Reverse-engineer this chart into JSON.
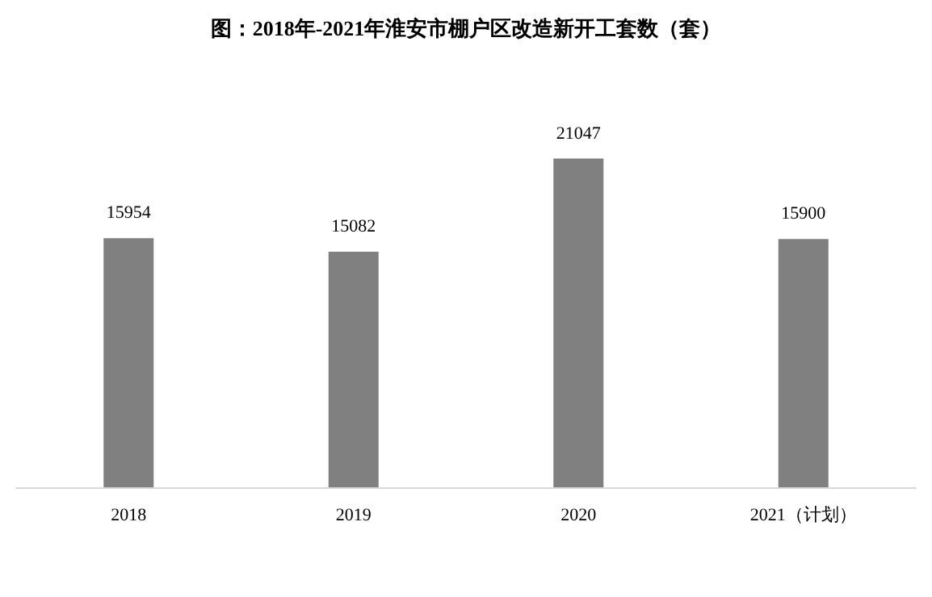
{
  "chart_data": {
    "type": "bar",
    "title": "图：2018年-2021年淮安市棚户区改造新开工套数（套）",
    "categories": [
      "2018",
      "2019",
      "2020",
      "2021（计划）"
    ],
    "values": [
      15954,
      15082,
      21047,
      15900
    ],
    "color": "#808080",
    "data_labels": true
  }
}
